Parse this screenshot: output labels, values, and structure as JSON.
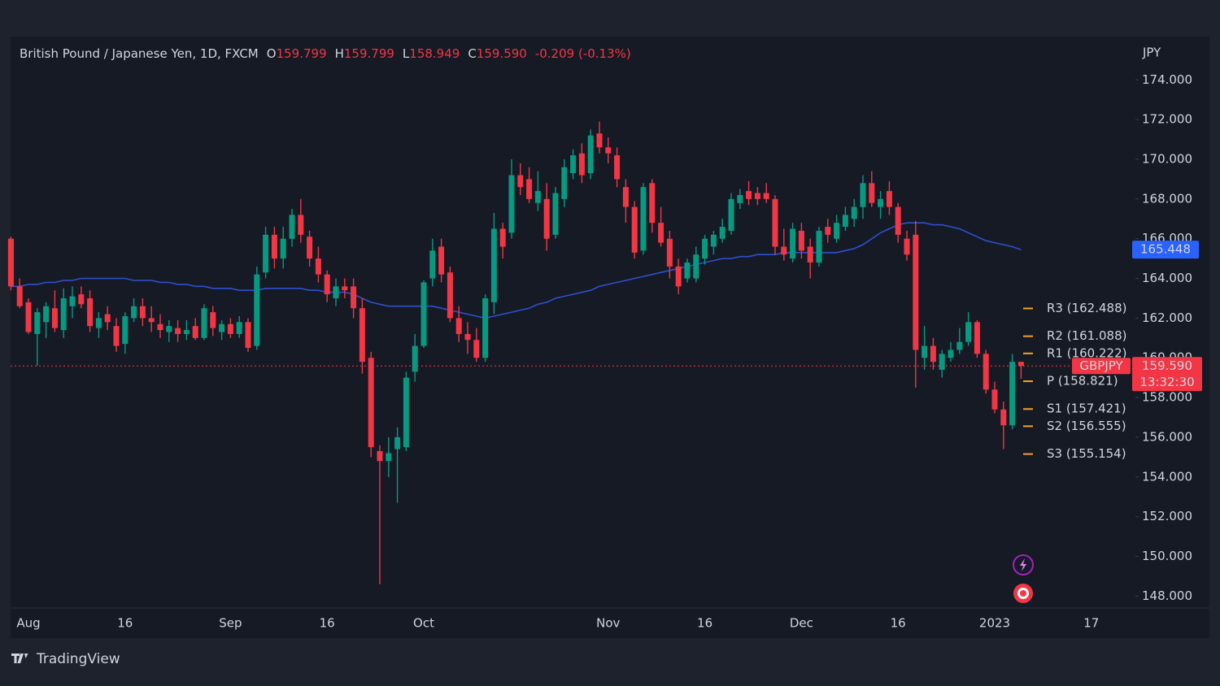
{
  "chart_data": {
    "type": "candlestick",
    "title": "British Pound / Japanese Yen, 1D, FXCM",
    "ohlc_legend": [
      {
        "key": "O",
        "text": "159.799"
      },
      {
        "key": "H",
        "text": "159.799"
      },
      {
        "key": "L",
        "text": "158.949"
      },
      {
        "key": "C",
        "text": "159.590"
      }
    ],
    "change": "-0.209 (-0.13%)",
    "currency": "JPY",
    "branding": "TradingView",
    "up_color": "#089981",
    "down_color": "#f23645",
    "categories": [
      null,
      null,
      "Aug",
      null,
      null,
      null,
      null,
      null,
      null,
      null,
      null,
      null,
      null,
      "16",
      null,
      null,
      null,
      null,
      null,
      null,
      null,
      null,
      null,
      null,
      null,
      "Sep",
      null,
      null,
      null,
      null,
      null,
      null,
      null,
      null,
      null,
      null,
      "16",
      null,
      null,
      null,
      null,
      null,
      null,
      null,
      null,
      null,
      null,
      "Oct",
      null,
      null,
      null,
      null,
      null,
      null,
      null,
      null,
      null,
      null,
      null,
      null,
      null,
      null,
      null,
      null,
      null,
      null,
      null,
      null,
      "Nov",
      null,
      null,
      null,
      null,
      null,
      null,
      null,
      null,
      null,
      null,
      "16",
      null,
      null,
      null,
      null,
      null,
      null,
      null,
      null,
      null,
      null,
      "Dec",
      null,
      null,
      null,
      null,
      null,
      null,
      null,
      null,
      null,
      null,
      "16",
      null,
      null,
      null,
      null,
      null,
      null,
      null,
      null,
      null,
      null,
      "2023",
      null,
      null,
      null,
      null,
      null,
      null,
      null,
      null,
      null,
      null,
      "17",
      null,
      null,
      null
    ],
    "open": [
      166.0,
      163.6,
      162.8,
      161.2,
      161.8,
      162.5,
      161.4,
      162.6,
      163.2,
      163.0,
      161.5,
      162.2,
      161.6,
      160.7,
      162.0,
      162.6,
      162.0,
      161.7,
      161.3,
      161.5,
      161.2,
      161.6,
      161.0,
      162.3,
      161.3,
      161.7,
      161.2,
      161.8,
      160.6,
      164.3,
      166.2,
      165.0,
      166.0,
      167.2,
      166.1,
      165.0,
      164.2,
      163.0,
      163.6,
      163.6,
      162.5,
      160.0,
      155.3,
      154.8,
      155.4,
      155.5,
      159.3,
      160.6,
      164.0,
      165.6,
      164.3,
      162.0,
      161.2,
      160.9,
      160.0,
      162.8,
      166.5,
      166.3,
      169.2,
      169.0,
      167.8,
      168.0,
      166.2,
      168.0,
      169.3,
      170.3,
      169.3,
      171.3,
      170.6,
      170.2,
      168.6,
      167.6,
      165.4,
      168.8,
      166.8,
      166.0,
      164.6,
      164.0,
      164.0,
      165.0,
      165.6,
      166.0,
      166.4,
      167.8,
      168.4,
      168.3,
      168.3,
      168.0,
      165.6,
      165.0,
      166.4,
      165.6,
      164.8,
      166.6,
      166.0,
      166.6,
      167.0,
      167.6,
      168.8,
      167.6,
      168.4,
      167.6,
      166.0,
      166.2,
      160.0,
      160.6,
      159.4,
      160.0,
      160.4,
      160.8,
      161.8,
      160.2,
      158.4,
      157.4,
      156.6,
      159.799,
      null,
      null,
      null,
      null,
      null,
      null,
      null,
      null,
      null,
      null,
      null
    ],
    "high": [
      166.1,
      164.0,
      163.0,
      162.5,
      162.8,
      163.4,
      163.5,
      163.6,
      163.6,
      163.4,
      162.3,
      162.6,
      162.0,
      162.3,
      163.0,
      163.0,
      162.6,
      162.2,
      161.9,
      161.9,
      161.9,
      162.0,
      162.7,
      162.6,
      161.9,
      162.0,
      162.1,
      162.0,
      164.6,
      166.6,
      166.6,
      166.6,
      167.5,
      168.0,
      166.4,
      165.6,
      164.4,
      164.0,
      164.0,
      164.0,
      163.0,
      160.3,
      155.6,
      156.0,
      156.5,
      159.3,
      161.2,
      163.9,
      166.0,
      166.0,
      164.6,
      162.6,
      161.8,
      161.5,
      163.2,
      167.3,
      166.8,
      170.0,
      169.8,
      169.6,
      169.4,
      168.8,
      168.6,
      170.0,
      170.5,
      170.8,
      171.5,
      171.9,
      171.1,
      170.6,
      169.0,
      167.9,
      168.8,
      169.0,
      167.6,
      166.4,
      165.0,
      165.0,
      165.6,
      166.2,
      166.4,
      167.0,
      168.3,
      168.5,
      168.9,
      168.6,
      168.8,
      168.2,
      166.5,
      166.8,
      166.8,
      166.0,
      166.6,
      167.0,
      167.2,
      167.6,
      168.0,
      169.2,
      169.4,
      168.4,
      168.9,
      167.8,
      166.4,
      166.9,
      161.6,
      161.0,
      160.4,
      160.8,
      161.5,
      162.3,
      161.9,
      160.4,
      158.8,
      157.8,
      160.2,
      159.799,
      null,
      null,
      null,
      null,
      null,
      null,
      null,
      null,
      null,
      null,
      null
    ],
    "low": [
      163.4,
      162.5,
      161.2,
      159.6,
      161.0,
      161.3,
      161.0,
      162.0,
      162.5,
      161.3,
      161.0,
      161.4,
      160.3,
      160.2,
      161.8,
      161.6,
      161.3,
      161.0,
      160.8,
      160.8,
      160.9,
      160.9,
      160.9,
      161.1,
      160.9,
      161.0,
      161.0,
      160.3,
      160.4,
      164.0,
      164.5,
      164.5,
      165.6,
      165.8,
      164.6,
      163.8,
      162.8,
      162.6,
      163.0,
      162.0,
      159.2,
      155.0,
      148.6,
      154.0,
      152.7,
      155.3,
      158.8,
      160.5,
      163.6,
      163.8,
      161.8,
      160.8,
      160.2,
      159.8,
      159.8,
      162.2,
      165.0,
      166.0,
      168.2,
      167.8,
      167.4,
      165.4,
      166.0,
      167.6,
      169.0,
      168.8,
      169.0,
      170.3,
      169.8,
      168.6,
      166.8,
      165.0,
      165.2,
      166.3,
      165.6,
      164.0,
      163.2,
      163.8,
      163.8,
      164.7,
      165.2,
      165.8,
      166.2,
      167.5,
      167.7,
      167.7,
      167.8,
      165.2,
      164.9,
      164.8,
      165.0,
      164.0,
      164.6,
      165.8,
      165.8,
      166.4,
      166.6,
      167.0,
      167.6,
      167.0,
      167.2,
      165.8,
      164.9,
      158.5,
      159.4,
      159.4,
      159.0,
      159.8,
      160.2,
      160.6,
      160.0,
      158.2,
      157.2,
      155.4,
      156.4,
      158.949,
      null,
      null,
      null,
      null,
      null,
      null,
      null,
      null,
      null,
      null,
      null
    ],
    "close": [
      163.6,
      162.6,
      161.3,
      162.3,
      162.6,
      161.5,
      163.0,
      163.1,
      162.7,
      161.6,
      162.0,
      161.8,
      160.6,
      162.1,
      162.6,
      162.0,
      161.8,
      161.4,
      161.6,
      161.2,
      161.4,
      161.0,
      162.5,
      161.5,
      161.7,
      161.2,
      161.8,
      160.5,
      164.2,
      166.2,
      165.0,
      166.0,
      167.2,
      166.2,
      165.0,
      164.2,
      163.2,
      163.6,
      163.4,
      162.5,
      159.8,
      155.5,
      154.8,
      155.2,
      156.0,
      159.0,
      160.6,
      163.8,
      165.4,
      164.2,
      162.0,
      161.2,
      160.9,
      160.0,
      163.0,
      166.5,
      165.6,
      169.2,
      168.6,
      168.0,
      168.4,
      166.0,
      168.3,
      169.6,
      170.2,
      169.2,
      171.2,
      170.6,
      170.3,
      169.0,
      167.6,
      165.3,
      168.6,
      166.8,
      165.8,
      164.6,
      163.6,
      164.8,
      165.2,
      166.0,
      166.2,
      166.6,
      168.0,
      168.2,
      168.0,
      168.0,
      168.0,
      165.6,
      165.2,
      166.5,
      165.4,
      164.8,
      166.4,
      166.2,
      166.8,
      167.2,
      167.6,
      168.8,
      167.8,
      168.0,
      167.6,
      166.2,
      165.2,
      160.4,
      160.6,
      159.8,
      160.2,
      160.4,
      160.8,
      161.8,
      160.2,
      158.4,
      157.4,
      156.6,
      159.8,
      159.59,
      null,
      null,
      null,
      null,
      null,
      null,
      null,
      null,
      null,
      null,
      null
    ],
    "ma": {
      "color": "#2f4fd0",
      "values": [
        163.6,
        163.6,
        163.7,
        163.7,
        163.8,
        163.8,
        163.9,
        163.9,
        164.0,
        164.0,
        164.0,
        164.0,
        164.0,
        164.0,
        163.9,
        163.9,
        163.9,
        163.8,
        163.8,
        163.7,
        163.7,
        163.6,
        163.6,
        163.5,
        163.5,
        163.5,
        163.4,
        163.4,
        163.4,
        163.5,
        163.5,
        163.5,
        163.5,
        163.5,
        163.4,
        163.4,
        163.3,
        163.3,
        163.3,
        163.2,
        163.0,
        162.8,
        162.7,
        162.6,
        162.6,
        162.6,
        162.6,
        162.6,
        162.6,
        162.5,
        162.4,
        162.3,
        162.2,
        162.1,
        162.0,
        162.1,
        162.2,
        162.3,
        162.4,
        162.5,
        162.7,
        162.8,
        163.0,
        163.1,
        163.2,
        163.3,
        163.4,
        163.6,
        163.7,
        163.8,
        163.9,
        164.0,
        164.1,
        164.2,
        164.3,
        164.4,
        164.5,
        164.6,
        164.7,
        164.8,
        164.9,
        165.0,
        165.0,
        165.1,
        165.1,
        165.2,
        165.2,
        165.2,
        165.3,
        165.3,
        165.3,
        165.3,
        165.3,
        165.3,
        165.3,
        165.4,
        165.5,
        165.7,
        166.0,
        166.3,
        166.5,
        166.7,
        166.8,
        166.8,
        166.8,
        166.7,
        166.7,
        166.6,
        166.5,
        166.3,
        166.1,
        165.9,
        165.8,
        165.7,
        165.6,
        165.448,
        null,
        null,
        null,
        null,
        null,
        null,
        null,
        null,
        null,
        null,
        null
      ]
    },
    "last_price": {
      "symbol": "GBPJPY",
      "value": 159.59,
      "label": "159.590",
      "countdown": "13:32:30",
      "color": "#f23645"
    },
    "pivots": [
      {
        "value": 162.488,
        "label": "R3 (162.488)"
      },
      {
        "value": 161.088,
        "label": "R2 (161.088)"
      },
      {
        "value": 160.222,
        "label": "R1 (160.222)"
      },
      {
        "value": 158.821,
        "label": "P (158.821)"
      },
      {
        "value": 157.421,
        "label": "S1 (157.421)"
      },
      {
        "value": 156.555,
        "label": "S2 (156.555)"
      },
      {
        "value": 155.154,
        "label": "S3 (155.154)"
      }
    ],
    "pivot_color": "#f7a21b",
    "ylim": [
      147.4,
      176.1
    ],
    "yticks": [
      {
        "value": 148,
        "label": "148.000"
      },
      {
        "value": 150,
        "label": "150.000"
      },
      {
        "value": 152,
        "label": "152.000"
      },
      {
        "value": 154,
        "label": "154.000"
      },
      {
        "value": 156,
        "label": "156.000"
      },
      {
        "value": 158,
        "label": "158.000"
      },
      {
        "value": 160,
        "label": "160.000"
      },
      {
        "value": 162,
        "label": "162.000"
      },
      {
        "value": 164,
        "label": "164.000"
      },
      {
        "value": 166,
        "label": "166.000"
      },
      {
        "value": 168,
        "label": "168.000"
      },
      {
        "value": 170,
        "label": "170.000"
      },
      {
        "value": 172,
        "label": "172.000"
      },
      {
        "value": 174,
        "label": "174.000"
      }
    ]
  }
}
